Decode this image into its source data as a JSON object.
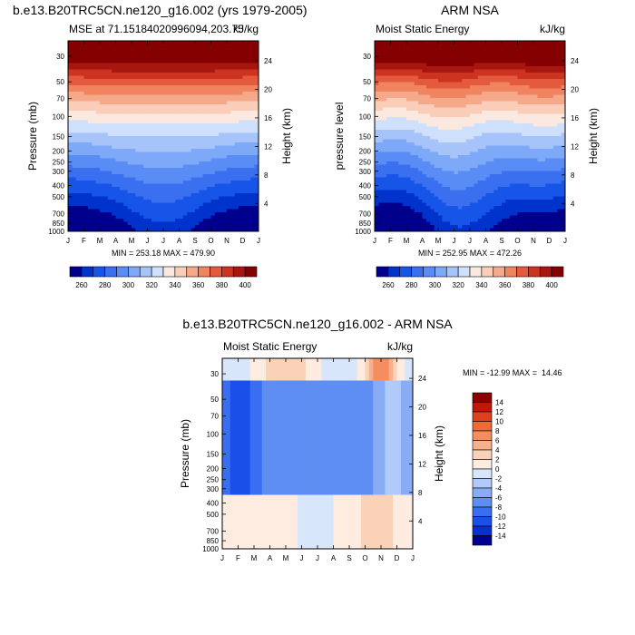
{
  "months": [
    "J",
    "F",
    "M",
    "A",
    "M",
    "J",
    "J",
    "A",
    "S",
    "O",
    "N",
    "D",
    "J"
  ],
  "chart_data": [
    {
      "type": "heatmap",
      "title": "b.e13.B20TRC5CN.ne120_g16.002 (yrs 1979-2005)",
      "left_string": "MSE at 71.15184020996094,203.75",
      "right_string": "kJ/kg",
      "ylabel": "Pressure (mb)",
      "ylabel_right": "Height (km)",
      "pressure_ticks": [
        "30",
        "50",
        "70",
        "100",
        "150",
        "200",
        "250",
        "300",
        "400",
        "500",
        "700",
        "850",
        "1000"
      ],
      "pressure_values": [
        30,
        50,
        70,
        100,
        150,
        200,
        250,
        300,
        400,
        500,
        700,
        850,
        1000
      ],
      "height_ticks": [
        "24",
        "20",
        "16",
        "12",
        "8",
        "4"
      ],
      "height_values": [
        24,
        20,
        16,
        12,
        8,
        4
      ],
      "ylim_mb": [
        1000,
        22
      ],
      "stats": "MIN = 253.18 MAX = 479.90",
      "min": 253.18,
      "max": 479.9,
      "colorbar_labels": [
        "260",
        "280",
        "300",
        "320",
        "340",
        "360",
        "380",
        "400"
      ],
      "colorbar_levels": [
        260,
        270,
        280,
        290,
        300,
        310,
        320,
        330,
        340,
        350,
        360,
        370,
        380,
        390,
        400
      ],
      "colors": [
        "#00008c",
        "#0033cc",
        "#1655e8",
        "#3a70f0",
        "#5a8cf5",
        "#7ea8f8",
        "#a6c4fa",
        "#cfe0fc",
        "#fbe9e0",
        "#f9cdb7",
        "#f5a98a",
        "#f0845f",
        "#e45a3c",
        "#cc3320",
        "#a81610",
        "#850000"
      ]
    },
    {
      "type": "heatmap",
      "title": "ARM NSA",
      "left_string": "Moist Static Energy",
      "right_string": "kJ/kg",
      "ylabel": "pressure level",
      "ylabel_right": "Height (km)",
      "pressure_ticks": [
        "30",
        "50",
        "70",
        "100",
        "150",
        "200",
        "250",
        "300",
        "400",
        "500",
        "700",
        "850",
        "1000"
      ],
      "pressure_values": [
        30,
        50,
        70,
        100,
        150,
        200,
        250,
        300,
        400,
        500,
        700,
        850,
        1000
      ],
      "height_ticks": [
        "24",
        "20",
        "16",
        "12",
        "8",
        "4"
      ],
      "height_values": [
        24,
        20,
        16,
        12,
        8,
        4
      ],
      "ylim_mb": [
        1000,
        22
      ],
      "stats": "MIN = 252.95 MAX = 472.26",
      "min": 252.95,
      "max": 472.26,
      "colorbar_labels": [
        "260",
        "280",
        "300",
        "320",
        "340",
        "360",
        "380",
        "400"
      ],
      "colorbar_levels": [
        260,
        270,
        280,
        290,
        300,
        310,
        320,
        330,
        340,
        350,
        360,
        370,
        380,
        390,
        400
      ],
      "colors": [
        "#00008c",
        "#0033cc",
        "#1655e8",
        "#3a70f0",
        "#5a8cf5",
        "#7ea8f8",
        "#a6c4fa",
        "#cfe0fc",
        "#fbe9e0",
        "#f9cdb7",
        "#f5a98a",
        "#f0845f",
        "#e45a3c",
        "#cc3320",
        "#a81610",
        "#850000"
      ]
    },
    {
      "type": "heatmap",
      "title": "b.e13.B20TRC5CN.ne120_g16.002 - ARM NSA",
      "left_string": "Moist Static Energy",
      "right_string": "kJ/kg",
      "ylabel": "Pressure (mb)",
      "ylabel_right": "Height (km)",
      "pressure_ticks": [
        "30",
        "50",
        "70",
        "100",
        "150",
        "200",
        "250",
        "300",
        "400",
        "500",
        "700",
        "850",
        "1000"
      ],
      "pressure_values": [
        30,
        50,
        70,
        100,
        150,
        200,
        250,
        300,
        400,
        500,
        700,
        850,
        1000
      ],
      "height_ticks": [
        "24",
        "20",
        "16",
        "12",
        "8",
        "4"
      ],
      "height_values": [
        24,
        20,
        16,
        12,
        8,
        4
      ],
      "ylim_mb": [
        1000,
        22
      ],
      "stats": "MIN = -12.99 MAX =  14.46",
      "min": -12.99,
      "max": 14.46,
      "colorbar_labels": [
        "14",
        "12",
        "10",
        "8",
        "6",
        "4",
        "2",
        "0",
        "-2",
        "-4",
        "-6",
        "-8",
        "-10",
        "-12",
        "-14"
      ],
      "colorbar_levels": [
        14,
        12,
        10,
        8,
        6,
        4,
        2,
        0,
        -2,
        -4,
        -6,
        -8,
        -10,
        -12,
        -14
      ],
      "colors": [
        "#8c0000",
        "#c01808",
        "#e0401c",
        "#f06a38",
        "#f58e5e",
        "#f8b08c",
        "#fad2b8",
        "#fdecdf",
        "#d8e6fb",
        "#b0cbf9",
        "#88adf6",
        "#5f8ef3",
        "#3a6ef0",
        "#1a4fea",
        "#0a2fd0",
        "#000090"
      ]
    }
  ]
}
